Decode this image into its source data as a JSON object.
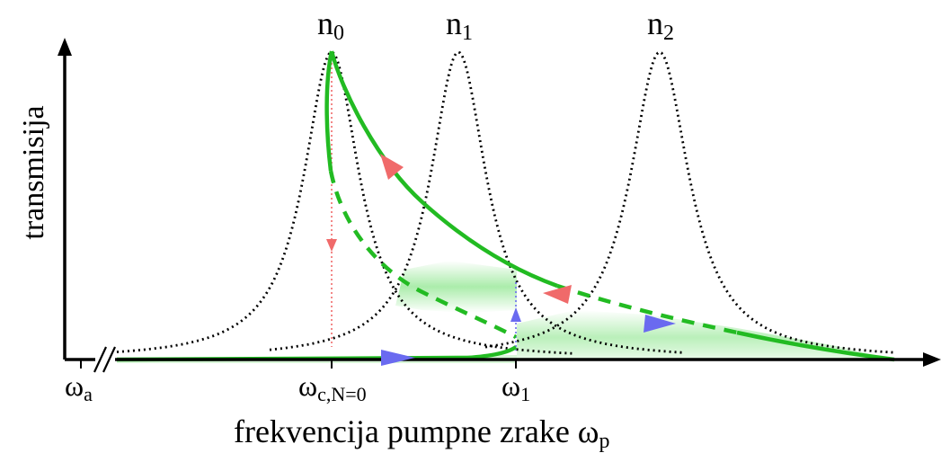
{
  "labels": {
    "n0": "n",
    "n0_sub": "0",
    "n1": "n",
    "n1_sub": "1",
    "n2": "n",
    "n2_sub": "2",
    "y_axis": "transmisija",
    "omega_a": "ω",
    "omega_a_sub": "a",
    "omega_c": "ω",
    "omega_c_sub": "c,N=0",
    "omega_1": "ω",
    "omega_1_sub": "1",
    "x_axis": "frekvencija pumpne zrake ω",
    "x_axis_sub": "p"
  },
  "colors": {
    "axis": "#000000",
    "resonance": "#000000",
    "curve": "#22bb22",
    "fill": "#66dd66",
    "arrow_red": "#f06a6a",
    "arrow_blue": "#6a6af0"
  },
  "icons": {
    "axis_break": "double-slash-break"
  }
}
